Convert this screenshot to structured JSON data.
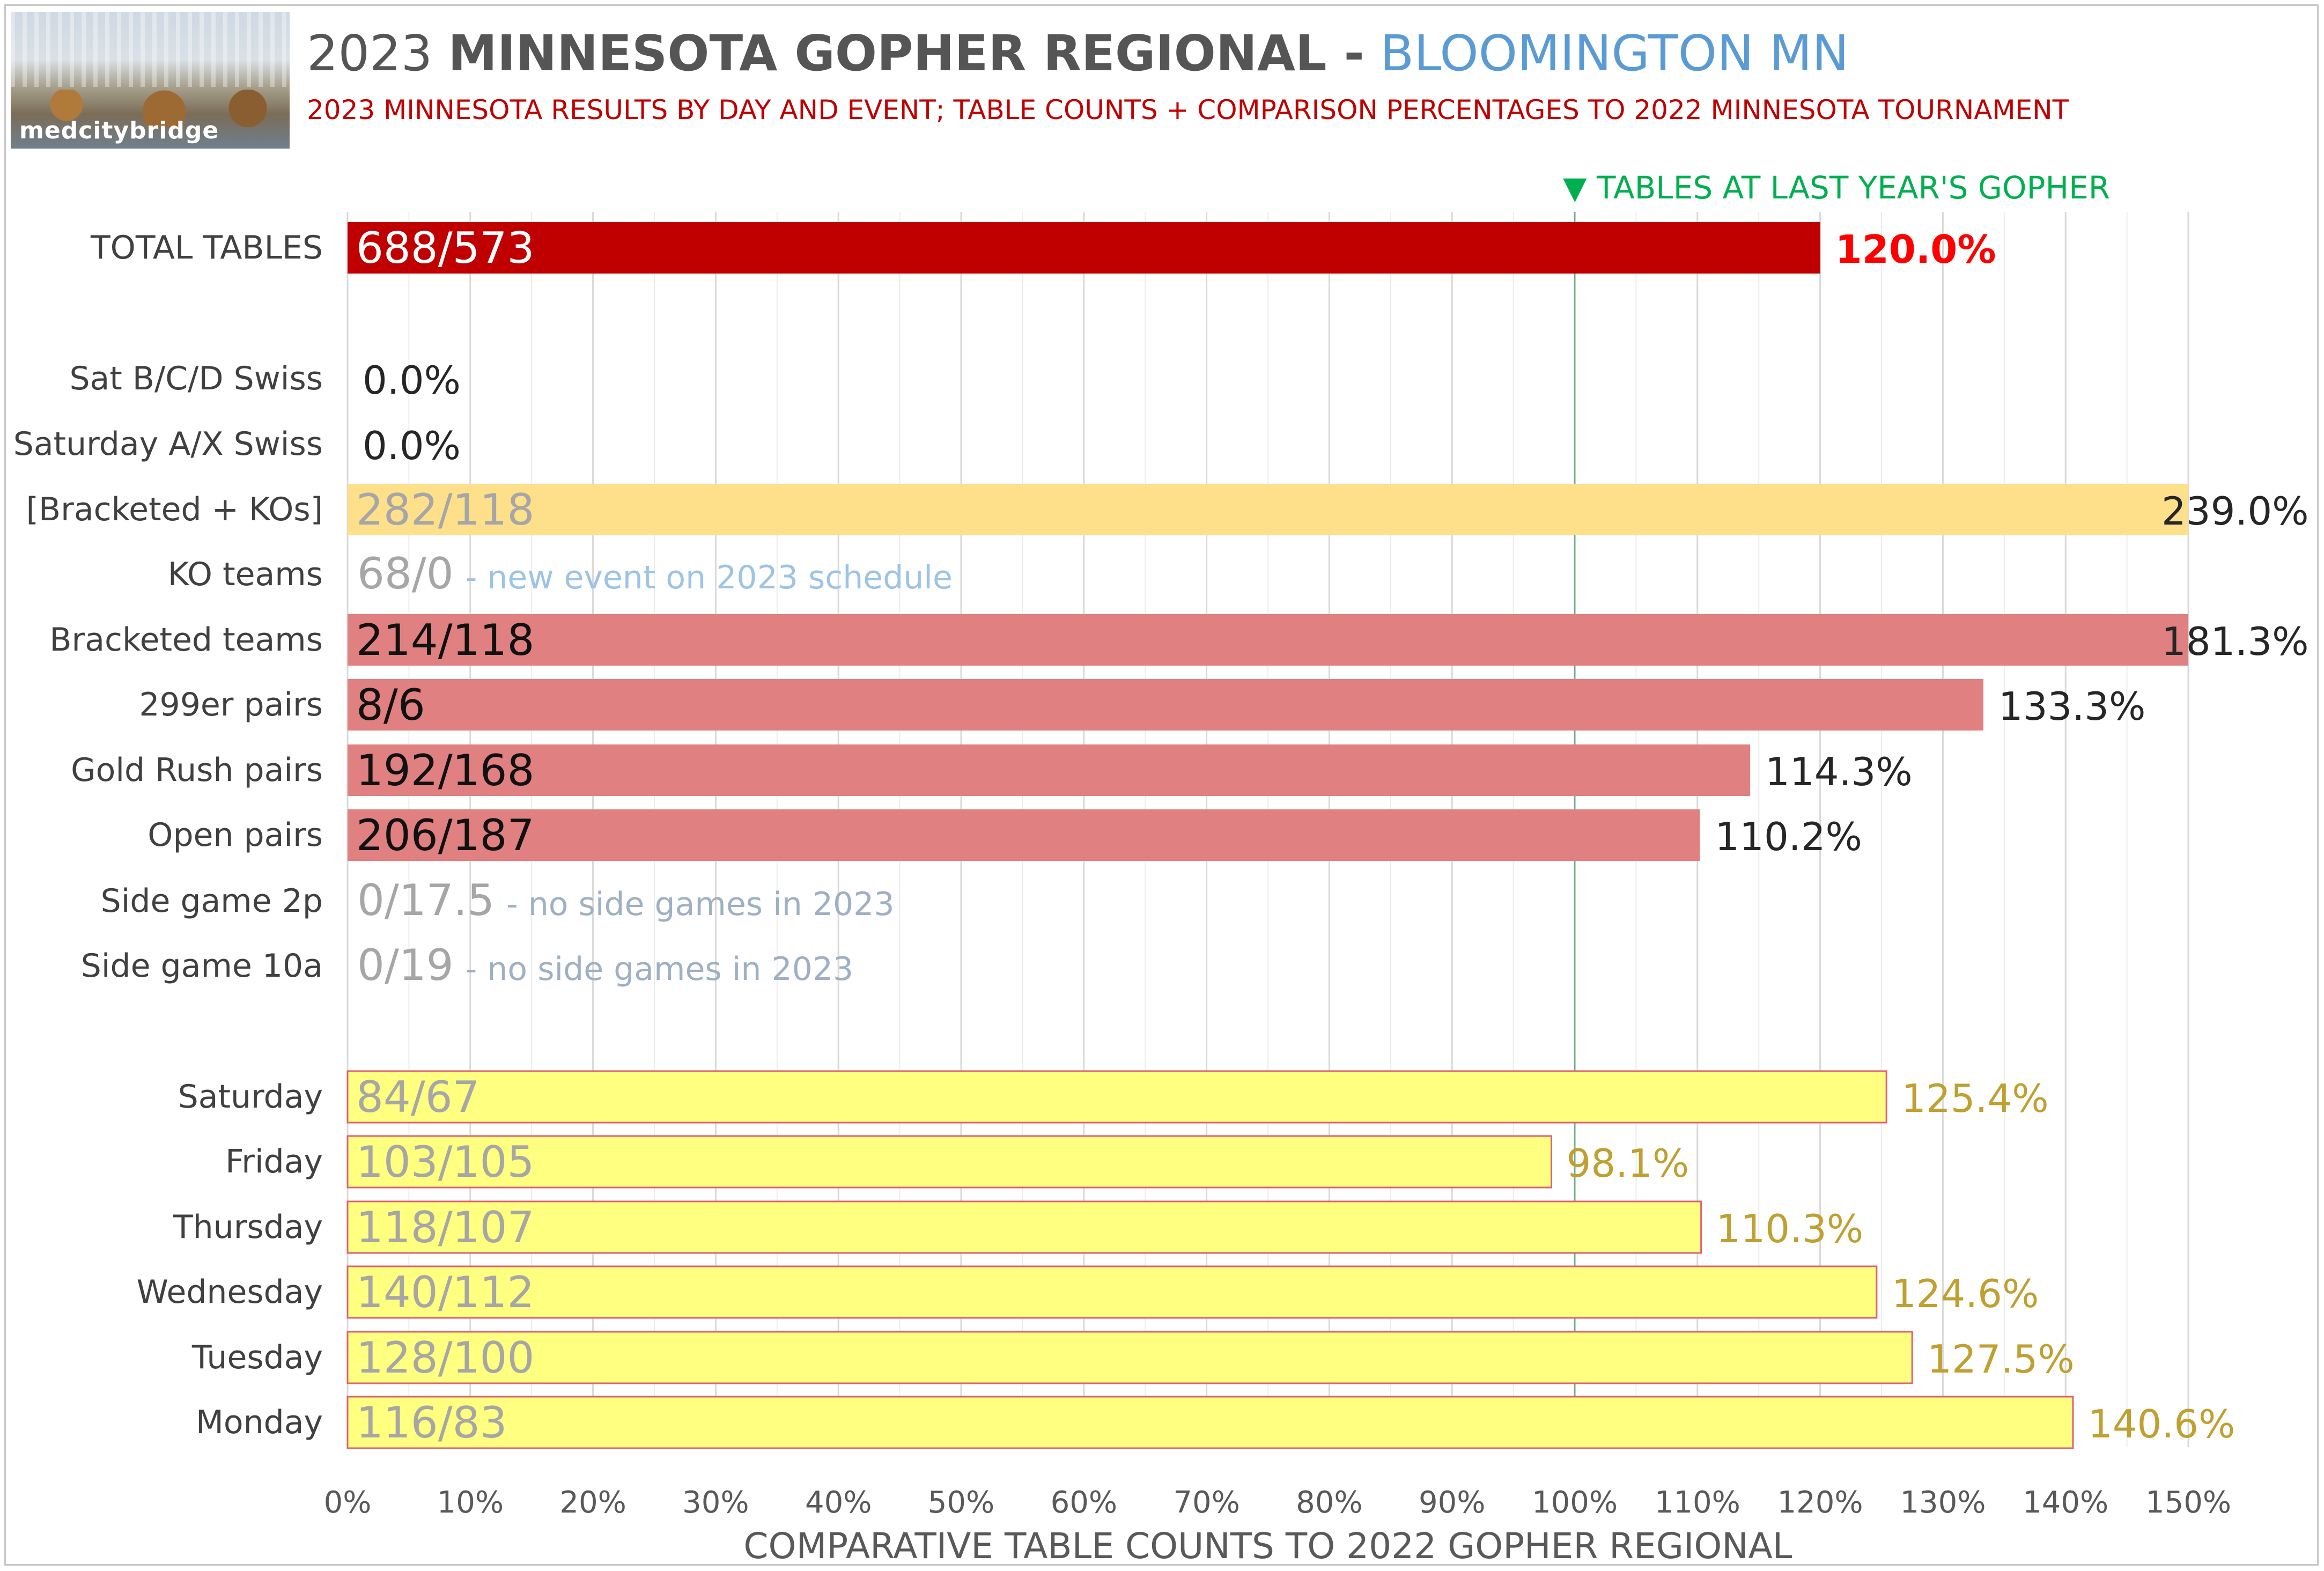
{
  "header": {
    "year": "2023",
    "title_main": "MINNESOTA GOPHER REGIONAL -",
    "title_location": "BLOOMINGTON MN",
    "subtitle": "2023 MINNESOTA RESULTS BY DAY AND EVENT; TABLE COUNTS + COMPARISON PERCENTAGES TO 2022 MINNESOTA TOURNAMENT",
    "logo_text": "medcitybridge"
  },
  "colors": {
    "total": "#c00000",
    "total_pct": "#ff0000",
    "event": "#e08080",
    "bracketed_ko": "#ffe08a",
    "day": "#ffff80",
    "day_border": "#e06070",
    "day_text": "#bfa030",
    "grey_text": "#a6a6a6",
    "note_blue": "#9dc3e6",
    "note_grey": "#9fb0c4",
    "ref_line": "#70ad8a",
    "ref_text": "#00b050"
  },
  "chart_data": {
    "type": "bar",
    "orientation": "horizontal",
    "xlabel": "COMPARATIVE TABLE COUNTS TO 2022 GOPHER REGIONAL",
    "xlim": [
      0,
      150
    ],
    "x_ticks": [
      "0%",
      "10%",
      "20%",
      "30%",
      "40%",
      "50%",
      "60%",
      "70%",
      "80%",
      "90%",
      "100%",
      "110%",
      "120%",
      "130%",
      "140%",
      "150%"
    ],
    "grid": true,
    "reference_line": {
      "value": 100,
      "label": "▼ TABLES AT LAST YEAR'S GOPHER"
    },
    "rows": [
      {
        "category": "TOTAL TABLES",
        "value": 120.0,
        "bar_label": "688/573",
        "pct_label": "120.0%",
        "style": "total"
      },
      {
        "category": "Sat B/C/D Swiss",
        "value": 0.0,
        "bar_label": "",
        "pct_label": "0.0%",
        "style": "empty"
      },
      {
        "category": "Saturday A/X Swiss",
        "value": 0.0,
        "bar_label": "",
        "pct_label": "0.0%",
        "style": "empty"
      },
      {
        "category": "[Bracketed + KOs]",
        "value": 239.0,
        "bar_label": "282/118",
        "pct_label": "239.0%",
        "style": "bracketed_ko"
      },
      {
        "category": "KO teams",
        "value": null,
        "bar_label": "68/0",
        "note": "- new event on 2023 schedule",
        "style": "note_blue"
      },
      {
        "category": "Bracketed teams",
        "value": 181.3,
        "bar_label": "214/118",
        "pct_label": "181.3%",
        "style": "event"
      },
      {
        "category": "299er pairs",
        "value": 133.3,
        "bar_label": "8/6",
        "pct_label": "133.3%",
        "style": "event"
      },
      {
        "category": "Gold Rush pairs",
        "value": 114.3,
        "bar_label": "192/168",
        "pct_label": "114.3%",
        "style": "event"
      },
      {
        "category": "Open pairs",
        "value": 110.2,
        "bar_label": "206/187",
        "pct_label": "110.2%",
        "style": "event"
      },
      {
        "category": "Side game 2p",
        "value": null,
        "bar_label": "0/17.5",
        "note": "- no side games in 2023",
        "style": "note_grey"
      },
      {
        "category": "Side game 10a",
        "value": null,
        "bar_label": "0/19",
        "note": "- no side games in 2023",
        "style": "note_grey"
      },
      {
        "category": "Saturday",
        "value": 125.4,
        "bar_label": "84/67",
        "pct_label": "125.4%",
        "style": "day"
      },
      {
        "category": "Friday",
        "value": 98.1,
        "bar_label": "103/105",
        "pct_label": "98.1%",
        "style": "day"
      },
      {
        "category": "Thursday",
        "value": 110.3,
        "bar_label": "118/107",
        "pct_label": "110.3%",
        "style": "day"
      },
      {
        "category": "Wednesday",
        "value": 124.6,
        "bar_label": "140/112",
        "pct_label": "124.6%",
        "style": "day"
      },
      {
        "category": "Tuesday",
        "value": 127.5,
        "bar_label": "128/100",
        "pct_label": "127.5%",
        "style": "day"
      },
      {
        "category": "Monday",
        "value": 140.6,
        "bar_label": "116/83",
        "pct_label": "140.6%",
        "style": "day"
      }
    ]
  }
}
